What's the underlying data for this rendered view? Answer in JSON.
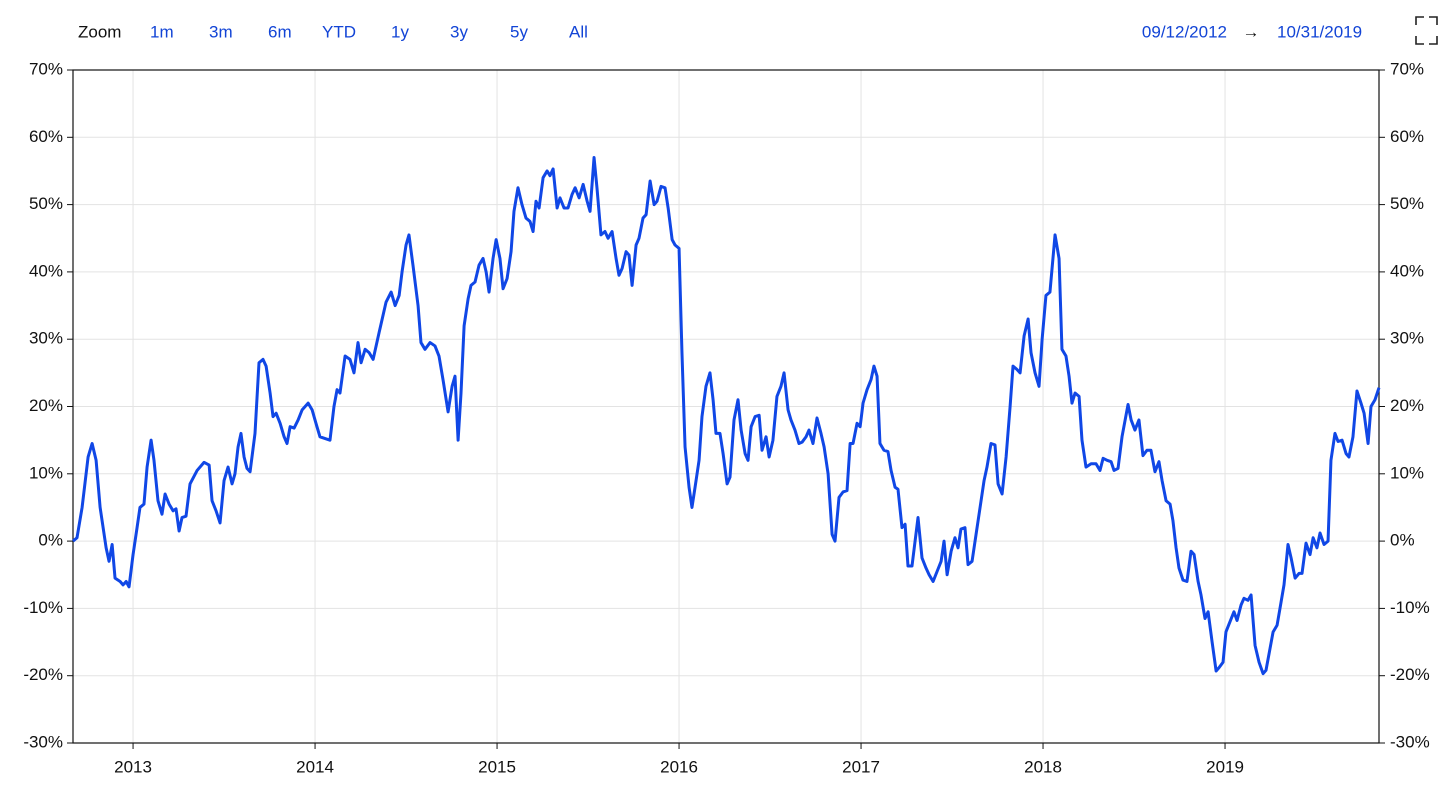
{
  "chart_data": {
    "type": "line",
    "toolbar": {
      "zoom_label": "Zoom",
      "buttons": [
        "1m",
        "3m",
        "6m",
        "YTD",
        "1y",
        "3y",
        "5y",
        "All"
      ],
      "range_start": "09/12/2012",
      "range_arrow": "→",
      "range_end": "10/31/2019"
    },
    "color": "#1047e6",
    "grid": true,
    "xlim": [
      2012.67,
      2019.846
    ],
    "xticks": [
      2013,
      2014,
      2015,
      2016,
      2017,
      2018,
      2019
    ],
    "ylim": [
      -30,
      70
    ],
    "yticks": [
      {
        "value": -30,
        "label": "-30%"
      },
      {
        "value": -20,
        "label": "-20%"
      },
      {
        "value": -10,
        "label": "-10%"
      },
      {
        "value": 0,
        "label": "0%"
      },
      {
        "value": 10,
        "label": "10%"
      },
      {
        "value": 20,
        "label": "20%"
      },
      {
        "value": 30,
        "label": "30%"
      },
      {
        "value": 40,
        "label": "40%"
      },
      {
        "value": 50,
        "label": "50%"
      },
      {
        "value": 60,
        "label": "60%"
      },
      {
        "value": 70,
        "label": "70%"
      }
    ],
    "x": [
      2012.67,
      2012.692,
      2012.72,
      2012.753,
      2012.775,
      2012.797,
      2012.819,
      2012.852,
      2012.868,
      2012.885,
      2012.901,
      2012.929,
      2012.945,
      2012.962,
      2012.978,
      2013.0,
      2013.022,
      2013.038,
      2013.06,
      2013.077,
      2013.099,
      2013.115,
      2013.137,
      2013.159,
      2013.176,
      2013.198,
      2013.22,
      2013.236,
      2013.253,
      2013.269,
      2013.291,
      2013.313,
      2013.352,
      2013.39,
      2013.418,
      2013.434,
      2013.456,
      2013.478,
      2013.5,
      2013.522,
      2013.544,
      2013.56,
      2013.577,
      2013.593,
      2013.61,
      2013.626,
      2013.643,
      2013.67,
      2013.692,
      2013.714,
      2013.731,
      2013.753,
      2013.769,
      2013.786,
      2013.808,
      2013.83,
      2013.846,
      2013.863,
      2013.885,
      2013.907,
      2013.929,
      2013.962,
      2013.984,
      2014.005,
      2014.027,
      2014.082,
      2014.104,
      2014.121,
      2014.137,
      2014.165,
      2014.192,
      2014.214,
      2014.236,
      2014.253,
      2014.275,
      2014.297,
      2014.319,
      2014.352,
      2014.39,
      2014.418,
      2014.44,
      2014.462,
      2014.478,
      2014.5,
      2014.516,
      2014.538,
      2014.566,
      2014.582,
      2014.604,
      2014.632,
      2014.659,
      2014.681,
      2014.703,
      2014.731,
      2014.753,
      2014.769,
      2014.786,
      2014.802,
      2014.819,
      2014.841,
      2014.857,
      2014.879,
      2014.901,
      2014.923,
      2014.94,
      2014.956,
      2014.978,
      2014.995,
      2015.016,
      2015.033,
      2015.055,
      2015.077,
      2015.093,
      2015.115,
      2015.137,
      2015.159,
      2015.181,
      2015.198,
      2015.214,
      2015.231,
      2015.253,
      2015.275,
      2015.291,
      2015.308,
      2015.33,
      2015.346,
      2015.368,
      2015.39,
      2015.412,
      2015.429,
      2015.451,
      2015.473,
      2015.495,
      2015.511,
      2015.533,
      2015.549,
      2015.571,
      2015.593,
      2015.61,
      2015.632,
      2015.654,
      2015.67,
      2015.687,
      2015.709,
      2015.725,
      2015.742,
      2015.764,
      2015.78,
      2015.802,
      2015.819,
      2015.841,
      2015.863,
      2015.879,
      2015.901,
      2015.923,
      2015.94,
      2015.962,
      2015.978,
      2016.0,
      2016.016,
      2016.033,
      2016.055,
      2016.071,
      2016.088,
      2016.11,
      2016.126,
      2016.148,
      2016.17,
      2016.187,
      2016.203,
      2016.225,
      2016.242,
      2016.264,
      2016.28,
      2016.302,
      2016.324,
      2016.341,
      2016.363,
      2016.379,
      2016.396,
      2016.418,
      2016.44,
      2016.456,
      2016.478,
      2016.495,
      2016.516,
      2016.538,
      2016.56,
      2016.577,
      2016.599,
      2016.615,
      2016.637,
      2016.659,
      2016.676,
      2016.698,
      2016.714,
      2016.736,
      2016.758,
      2016.78,
      2016.797,
      2016.819,
      2016.841,
      2016.857,
      2016.879,
      2016.901,
      2016.923,
      2016.94,
      2016.956,
      2016.978,
      2016.995,
      2017.011,
      2017.033,
      2017.055,
      2017.071,
      2017.088,
      2017.104,
      2017.126,
      2017.148,
      2017.165,
      2017.187,
      2017.203,
      2017.225,
      2017.242,
      2017.258,
      2017.28,
      2017.297,
      2017.313,
      2017.335,
      2017.357,
      2017.374,
      2017.396,
      2017.418,
      2017.44,
      2017.456,
      2017.473,
      2017.495,
      2017.516,
      2017.533,
      2017.549,
      2017.571,
      2017.588,
      2017.61,
      2017.632,
      2017.654,
      2017.676,
      2017.692,
      2017.714,
      2017.736,
      2017.753,
      2017.775,
      2017.797,
      2017.819,
      2017.835,
      2017.857,
      2017.874,
      2017.896,
      2017.918,
      2017.934,
      2017.956,
      2017.978,
      2017.995,
      2018.016,
      2018.038,
      2018.066,
      2018.088,
      2018.104,
      2018.126,
      2018.143,
      2018.159,
      2018.176,
      2018.198,
      2018.214,
      2018.236,
      2018.264,
      2018.291,
      2018.313,
      2018.33,
      2018.352,
      2018.374,
      2018.39,
      2018.412,
      2018.434,
      2018.467,
      2018.484,
      2018.505,
      2018.527,
      2018.549,
      2018.571,
      2018.593,
      2018.615,
      2018.637,
      2018.654,
      2018.676,
      2018.698,
      2018.714,
      2018.731,
      2018.747,
      2018.769,
      2018.791,
      2018.813,
      2018.83,
      2018.852,
      2018.868,
      2018.89,
      2018.907,
      2018.929,
      2018.951,
      2018.967,
      2018.989,
      2019.005,
      2019.027,
      2019.049,
      2019.066,
      2019.088,
      2019.104,
      2019.126,
      2019.143,
      2019.165,
      2019.187,
      2019.209,
      2019.225,
      2019.247,
      2019.264,
      2019.286,
      2019.302,
      2019.324,
      2019.346,
      2019.363,
      2019.385,
      2019.407,
      2019.423,
      2019.445,
      2019.467,
      2019.484,
      2019.505,
      2019.522,
      2019.544,
      2019.566,
      2019.582,
      2019.604,
      2019.621,
      2019.643,
      2019.665,
      2019.681,
      2019.703,
      2019.725,
      2019.747,
      2019.764,
      2019.786,
      2019.802,
      2019.824,
      2019.846
    ],
    "values": [
      0,
      0.5,
      5,
      12.5,
      14.5,
      12,
      5,
      -1,
      -3,
      -0.5,
      -5.5,
      -6,
      -6.5,
      -6,
      -6.8,
      -2,
      2,
      5,
      5.5,
      11,
      15,
      12,
      6,
      4,
      7,
      5.5,
      4.5,
      4.8,
      1.5,
      3.5,
      3.7,
      8.5,
      10.5,
      11.7,
      11.3,
      6,
      4.5,
      2.7,
      9,
      11,
      8.5,
      10,
      14,
      16,
      12.5,
      10.8,
      10.3,
      16,
      26.5,
      27,
      26,
      22,
      18.5,
      19,
      17.5,
      15.5,
      14.5,
      17,
      16.8,
      18,
      19.5,
      20.5,
      19.5,
      17.5,
      15.5,
      15,
      20,
      22.5,
      22,
      27.5,
      27,
      25,
      29.5,
      26.5,
      28.5,
      28,
      27,
      31,
      35.5,
      37,
      35,
      36.5,
      40,
      44,
      45.5,
      41,
      35,
      29.5,
      28.5,
      29.5,
      29,
      27.5,
      24,
      19.2,
      23,
      24.5,
      15,
      22,
      32,
      36,
      38,
      38.5,
      41,
      42,
      40,
      37,
      42,
      44.8,
      42,
      37.5,
      39,
      43,
      49,
      52.5,
      50,
      48,
      47.5,
      46,
      50.5,
      49.5,
      54,
      55,
      54.3,
      55.3,
      49.5,
      51,
      49.5,
      49.5,
      51.5,
      52.5,
      51,
      53,
      50.5,
      49,
      57,
      52.5,
      45.5,
      46,
      45,
      46,
      42,
      39.5,
      40.5,
      43,
      42.5,
      38,
      44,
      45,
      48,
      48.5,
      53.5,
      50,
      50.5,
      52.7,
      52.5,
      49.5,
      44.8,
      44,
      43.5,
      28,
      14,
      8,
      5,
      8,
      12,
      18.5,
      23,
      25,
      21,
      16,
      16,
      13,
      8.5,
      9.5,
      18,
      21,
      16.5,
      13,
      12,
      17,
      18.5,
      18.7,
      13.5,
      15.5,
      12.5,
      15,
      21.5,
      23,
      25,
      19.5,
      18,
      16.5,
      14.5,
      14.7,
      15.5,
      16.5,
      14.5,
      18.3,
      16,
      14,
      10,
      1,
      0,
      6.5,
      7.3,
      7.5,
      14.5,
      14.5,
      17.5,
      17,
      20.5,
      22.5,
      24,
      26,
      24.5,
      14.5,
      13.5,
      13.3,
      10.5,
      8,
      7.7,
      2,
      2.5,
      -3.7,
      -3.7,
      0,
      3.5,
      -2.5,
      -4,
      -5,
      -6,
      -4.5,
      -3,
      0,
      -5,
      -1.5,
      0.5,
      -1,
      1.8,
      2,
      -3.5,
      -3,
      1,
      5,
      9,
      11,
      14.5,
      14.3,
      8.5,
      7,
      12.5,
      20,
      26,
      25.5,
      25,
      30.5,
      33,
      28,
      25,
      23,
      30,
      36.5,
      37,
      45.5,
      42,
      28.5,
      27.5,
      24.5,
      20.5,
      22,
      21.5,
      15,
      11,
      11.5,
      11.5,
      10.5,
      12.3,
      12,
      11.8,
      10.5,
      10.8,
      15.5,
      20.3,
      18,
      16.5,
      18,
      12.7,
      13.5,
      13.5,
      10.3,
      11.8,
      9,
      6,
      5.5,
      3,
      -1,
      -4,
      -5.8,
      -6,
      -1.5,
      -2,
      -6,
      -8,
      -11.5,
      -10.5,
      -15,
      -19.3,
      -18.8,
      -18,
      -13.5,
      -12,
      -10.5,
      -11.8,
      -9.5,
      -8.5,
      -8.8,
      -8,
      -15.5,
      -18,
      -19.7,
      -19.2,
      -16,
      -13.5,
      -12.5,
      -10,
      -6.5,
      -0.5,
      -2.5,
      -5.5,
      -4.8,
      -4.8,
      -0.3,
      -2,
      0.5,
      -1,
      1.2,
      -0.5,
      0,
      12,
      16,
      14.8,
      15,
      13,
      12.5,
      15.5,
      22.3,
      20.5,
      19,
      14.5,
      20,
      21,
      22.8
    ]
  }
}
